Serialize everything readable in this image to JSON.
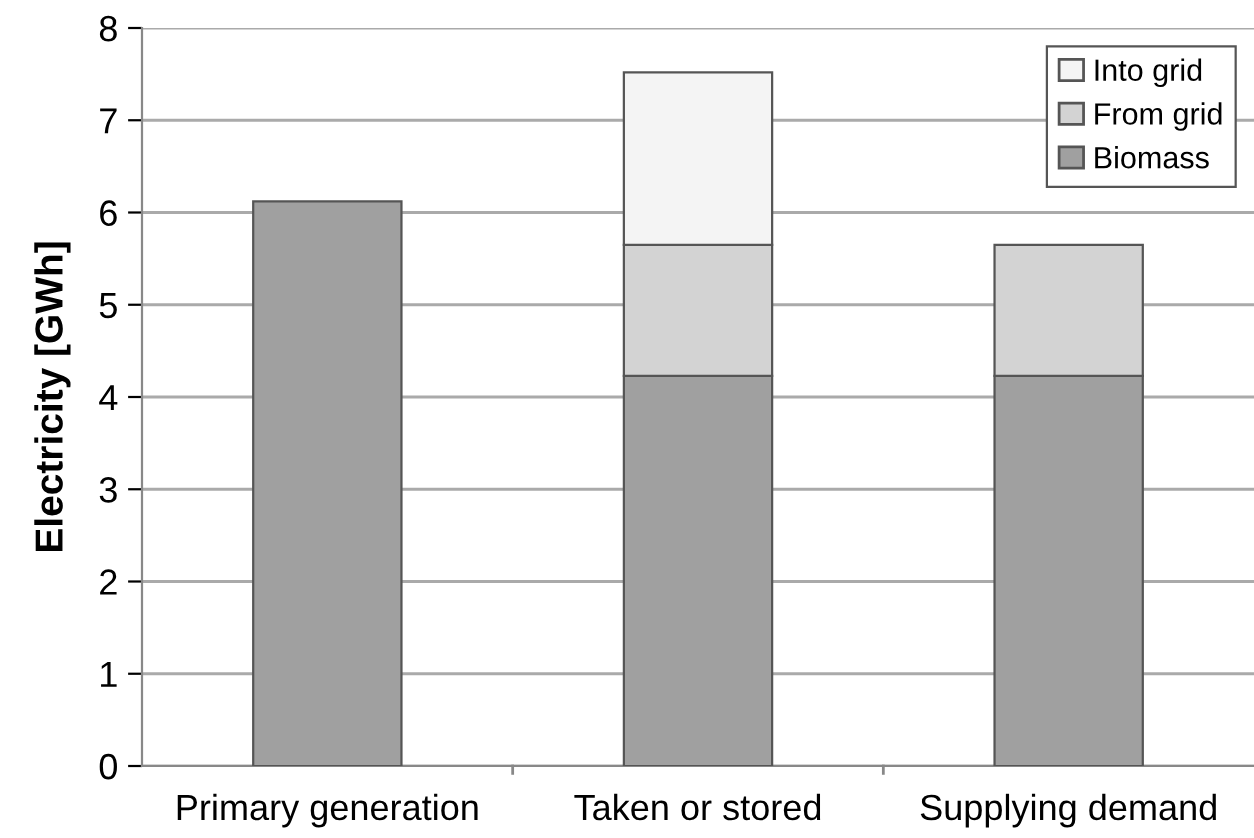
{
  "chart_data": {
    "type": "bar",
    "stacked": true,
    "ylabel": "Electricity [GWh]",
    "categories": [
      "Primary generation",
      "Taken or stored",
      "Supplying demand"
    ],
    "series": [
      {
        "name": "Biomass",
        "color": "#a0a0a0",
        "values": [
          6.12,
          4.23,
          4.23
        ]
      },
      {
        "name": "From grid",
        "color": "#d3d3d3",
        "values": [
          null,
          1.42,
          1.42
        ]
      },
      {
        "name": "Into grid",
        "color": "#f4f4f4",
        "values": [
          null,
          1.87,
          null
        ]
      }
    ],
    "ylim": [
      0,
      8
    ],
    "yticks": [
      0,
      1,
      2,
      3,
      4,
      5,
      6,
      7,
      8
    ],
    "grid": "y",
    "legend": "top right"
  }
}
